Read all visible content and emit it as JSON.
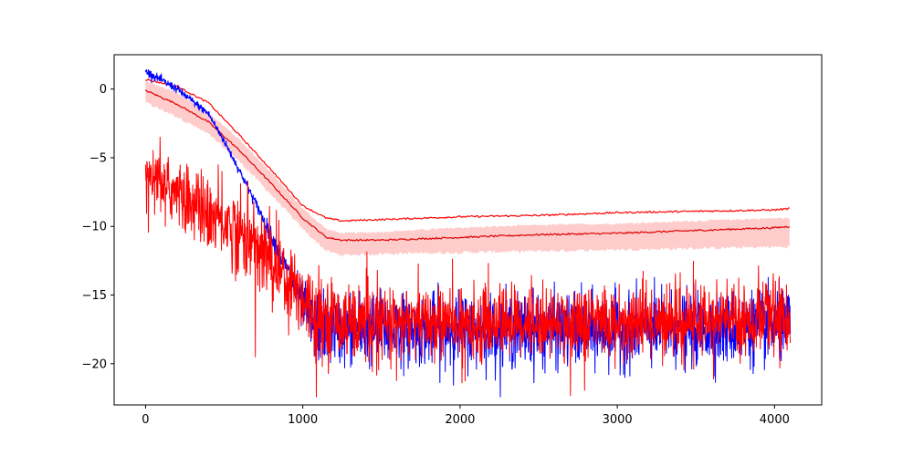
{
  "chart_data": {
    "type": "line",
    "title": "",
    "xlabel": "",
    "ylabel": "",
    "xlim": [
      -200,
      4300
    ],
    "ylim": [
      -23,
      2.5
    ],
    "xticks": [
      0,
      1000,
      2000,
      3000,
      4000
    ],
    "xtick_labels": [
      "0",
      "1000",
      "2000",
      "3000",
      "4000"
    ],
    "yticks": [
      0,
      -5,
      -10,
      -15,
      -20
    ],
    "ytick_labels": [
      "0",
      "−5",
      "−10",
      "−15",
      "−20"
    ],
    "grid": false,
    "legend": "none",
    "series": [
      {
        "kind": "band",
        "color": "#ff9999",
        "x": [
          0,
          200,
          400,
          600,
          800,
          1000,
          1150,
          1250,
          1500,
          2000,
          2500,
          3000,
          3500,
          4000,
          4100
        ],
        "lower": [
          -1.0,
          -2.0,
          -3.3,
          -5.3,
          -7.7,
          -10.2,
          -11.8,
          -12.1,
          -12.0,
          -11.9,
          -11.8,
          -11.7,
          -11.6,
          -11.5,
          -11.5
        ],
        "upper": [
          0.6,
          -0.3,
          -1.7,
          -3.7,
          -6.1,
          -8.7,
          -10.2,
          -10.5,
          -10.4,
          -10.1,
          -9.9,
          -9.8,
          -9.6,
          -9.4,
          -9.4
        ]
      },
      {
        "kind": "line",
        "color": "#dd0000",
        "x": [
          0,
          200,
          400,
          600,
          800,
          1000,
          1150,
          1250,
          1500,
          2000,
          2500,
          3000,
          3500,
          4000,
          4100
        ],
        "y": [
          -0.1,
          -1.1,
          -2.4,
          -4.5,
          -6.9,
          -9.4,
          -10.8,
          -11.0,
          -11.0,
          -10.8,
          -10.6,
          -10.5,
          -10.3,
          -10.1,
          -10.0
        ]
      },
      {
        "kind": "line",
        "color": "#ff0000",
        "x": [
          0,
          200,
          400,
          600,
          800,
          1000,
          1150,
          1250,
          1500,
          2000,
          2500,
          3000,
          3500,
          4000,
          4100
        ],
        "y": [
          0.7,
          0.2,
          -1.0,
          -3.4,
          -5.9,
          -8.5,
          -9.4,
          -9.6,
          -9.5,
          -9.3,
          -9.2,
          -9.0,
          -8.9,
          -8.8,
          -8.7
        ]
      },
      {
        "kind": "noisy",
        "color": "#0000ff",
        "x": [
          0,
          200,
          400,
          500,
          600,
          700,
          800,
          900,
          1000,
          1050,
          1100,
          1500,
          2000,
          2500,
          3000,
          3500,
          4000,
          4100
        ],
        "y": [
          1.3,
          0.0,
          -1.8,
          -3.8,
          -6.0,
          -8.3,
          -10.7,
          -13.2,
          -15.9,
          -17.0,
          -17.4,
          -17.5,
          -17.5,
          -17.6,
          -17.6,
          -17.5,
          -17.4,
          -17.4
        ],
        "noise": [
          0.15,
          0.15,
          0.15,
          0.15,
          0.15,
          0.2,
          0.3,
          0.5,
          0.9,
          1.1,
          1.3,
          1.3,
          1.3,
          1.3,
          1.3,
          1.3,
          1.3,
          1.3
        ]
      },
      {
        "kind": "noisy",
        "color": "#ff0000",
        "x": [
          0,
          200,
          400,
          600,
          800,
          1000,
          1100,
          1500,
          2000,
          2500,
          3000,
          3500,
          4000,
          4100
        ],
        "y": [
          -6.0,
          -7.6,
          -9.0,
          -10.4,
          -12.5,
          -15.0,
          -16.5,
          -17.0,
          -17.0,
          -16.9,
          -16.9,
          -16.8,
          -16.7,
          -16.7
        ],
        "noise": [
          0.9,
          1.2,
          1.4,
          1.5,
          1.5,
          1.5,
          1.4,
          1.3,
          1.3,
          1.3,
          1.3,
          1.3,
          1.3,
          1.3
        ]
      }
    ]
  }
}
